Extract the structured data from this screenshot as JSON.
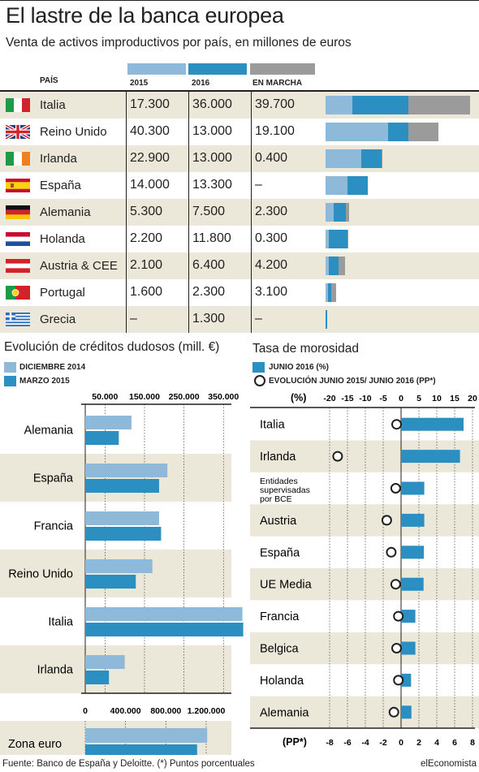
{
  "title": "El lastre de la banca europea",
  "subtitle": "Venta de activos improductivos por país, en millones de euros",
  "colors": {
    "c2015": "#8fb9d8",
    "c2016": "#2b8fc1",
    "cmarcha": "#9a9b9a",
    "shade": "#ebe8d9"
  },
  "table": {
    "headers": {
      "country": "PAÍS",
      "y2015": "2015",
      "y2016": "2016",
      "marcha": "EN MARCHA"
    },
    "rows": [
      {
        "flag": "italy-flag-icon",
        "country": "Italia",
        "v2015": "17.300",
        "v2016": "36.000",
        "marcha": "39.700"
      },
      {
        "flag": "uk-flag-icon",
        "country": "Reino Unido",
        "v2015": "40.300",
        "v2016": "13.000",
        "marcha": "19.100"
      },
      {
        "flag": "ireland-flag-icon",
        "country": "Irlanda",
        "v2015": "22.900",
        "v2016": "13.000",
        "marcha": "0.400"
      },
      {
        "flag": "spain-flag-icon",
        "country": "España",
        "v2015": "14.000",
        "v2016": "13.300",
        "marcha": "–"
      },
      {
        "flag": "germany-flag-icon",
        "country": "Alemania",
        "v2015": "5.300",
        "v2016": "7.500",
        "marcha": "2.300"
      },
      {
        "flag": "netherlands-flag-icon",
        "country": "Holanda",
        "v2015": "2.200",
        "v2016": "11.800",
        "marcha": "0.300"
      },
      {
        "flag": "austria-flag-icon",
        "country": "Austria & CEE",
        "v2015": "2.100",
        "v2016": "6.400",
        "marcha": "4.200"
      },
      {
        "flag": "portugal-flag-icon",
        "country": "Portugal",
        "v2015": "1.600",
        "v2016": "2.300",
        "marcha": "3.100"
      },
      {
        "flag": "greece-flag-icon",
        "country": "Grecia",
        "v2015": "–",
        "v2016": "1.300",
        "marcha": "–"
      }
    ]
  },
  "chart_data": [
    {
      "type": "bar",
      "orientation": "horizontal-stacked",
      "categories": [
        "Italia",
        "Reino Unido",
        "Irlanda",
        "España",
        "Alemania",
        "Holanda",
        "Austria & CEE",
        "Portugal",
        "Grecia"
      ],
      "series": [
        {
          "name": "2015",
          "color": "#8fb9d8",
          "values": [
            17300,
            40300,
            22900,
            14000,
            5300,
            2200,
            2100,
            1600,
            0
          ]
        },
        {
          "name": "2016",
          "color": "#2b8fc1",
          "values": [
            36000,
            13000,
            13000,
            13300,
            7500,
            11800,
            6400,
            2300,
            1300
          ]
        },
        {
          "name": "EN MARCHA",
          "color": "#9a9b9a",
          "values": [
            39700,
            19100,
            400,
            0,
            2300,
            300,
            4200,
            3100,
            0
          ]
        }
      ],
      "xlim": [
        0,
        95000
      ]
    },
    {
      "type": "bar",
      "orientation": "horizontal",
      "title": "Evolución de créditos dudosos (mill. €)",
      "legend": [
        {
          "name": "DICIEMBRE 2014",
          "color": "#8fb9d8"
        },
        {
          "name": "MARZO 2015",
          "color": "#2b8fc1"
        }
      ],
      "top_axis": {
        "ticks": [
          50000,
          150000,
          250000,
          350000
        ],
        "labels": [
          "50.000",
          "150.000",
          "250.000",
          "350.000"
        ],
        "xlim": [
          0,
          370000
        ]
      },
      "bottom_axis": {
        "ticks": [
          0,
          400000,
          800000,
          1200000
        ],
        "labels": [
          "0",
          "400.000",
          "800.000",
          "1.200.000"
        ],
        "xlim": [
          0,
          1450000
        ]
      },
      "categories": [
        "Alemania",
        "España",
        "Francia",
        "Reino Unido",
        "Italia",
        "Irlanda"
      ],
      "series": [
        {
          "name": "DICIEMBRE 2014",
          "values": [
            117000,
            208000,
            187000,
            170000,
            398000,
            100000
          ]
        },
        {
          "name": "MARZO 2015",
          "values": [
            85000,
            187000,
            192000,
            128000,
            400000,
            60000
          ]
        }
      ],
      "zona_euro": {
        "label": "Zona euro",
        "values": {
          "DICIEMBRE 2014": 1210000,
          "MARZO 2015": 1110000
        }
      }
    },
    {
      "type": "bar",
      "orientation": "horizontal",
      "title": "Tasa de morosidad",
      "legend": [
        {
          "name": "JUNIO 2016 (%)",
          "color": "#2b8fc1",
          "marker": "bar"
        },
        {
          "name": "EVOLUCIÓN JUNIO 2015/ JUNIO 2016 (PP*)",
          "marker": "circle"
        }
      ],
      "top_axis": {
        "label": "(%)",
        "ticks": [
          -20,
          -15,
          -10,
          -5,
          0,
          5,
          10,
          15,
          20
        ],
        "labels": [
          "-20",
          "-15",
          "-10",
          "-5",
          "0",
          "5",
          "10",
          "15",
          "20"
        ]
      },
      "bottom_axis": {
        "label": "(PP*)",
        "ticks": [
          -8,
          -6,
          -4,
          -2,
          0,
          2,
          4,
          6,
          8
        ],
        "labels": [
          "-8",
          "-6",
          "-4",
          "-2",
          "0",
          "2",
          "4",
          "6",
          "8"
        ]
      },
      "categories": [
        "Italia",
        "Irlanda",
        "Entidades supervisadas por BCE",
        "Austria",
        "España",
        "UE Media",
        "Francia",
        "Belgica",
        "Holanda",
        "Alemania"
      ],
      "series": [
        {
          "name": "JUNIO 2016 (%)",
          "values": [
            17.5,
            16.5,
            6.5,
            6.5,
            6.4,
            6.3,
            4.0,
            4.0,
            2.8,
            2.9
          ]
        },
        {
          "name": "EVOLUCIÓN JUNIO 2015/ JUNIO 2016 (PP*)",
          "values": [
            -0.5,
            -7.1,
            -0.6,
            -1.6,
            -1.1,
            -0.6,
            -0.3,
            -0.5,
            -0.3,
            -0.8
          ]
        }
      ]
    }
  ],
  "credit_section": {
    "title": "Evolución de créditos dudosos (mill. €)",
    "legend": [
      "DICIEMBRE 2014",
      "MARZO 2015"
    ]
  },
  "moros_section": {
    "title": "Tasa de morosidad",
    "legend": [
      "JUNIO 2016 (%)",
      "EVOLUCIÓN JUNIO 2015/ JUNIO 2016 (PP*)"
    ],
    "top_label": "(%)",
    "bottom_label": "(PP*)"
  },
  "footer": "Fuente: Banco de España y Deloitte. (*) Puntos porcentuales",
  "brand": "elEconomista"
}
